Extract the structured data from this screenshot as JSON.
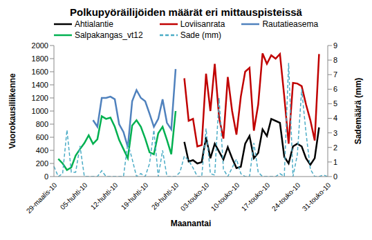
{
  "chart_data": {
    "type": "line",
    "title": "Polkupyöräilijöiden määrät eri mittauspisteissä",
    "x_label": "Maanantai",
    "y_label": "Vuorokausiliikenne",
    "y2_label": "Sademäärä (mm)",
    "categories": [
      "29-maalis-10",
      null,
      null,
      null,
      null,
      null,
      null,
      "05-huhti-10",
      null,
      null,
      null,
      null,
      null,
      null,
      "12-huhti-10",
      null,
      null,
      null,
      null,
      null,
      null,
      "19-huhti-10",
      null,
      null,
      null,
      null,
      null,
      null,
      "26-huhti-10",
      null,
      null,
      null,
      null,
      null,
      null,
      "03-touko-10",
      null,
      null,
      null,
      null,
      null,
      null,
      "10-touko-10",
      null,
      null,
      null,
      null,
      null,
      null,
      "17-touko-10",
      null,
      null,
      null,
      null,
      null,
      null,
      "24-touko-10",
      null,
      null,
      null,
      null,
      null,
      null,
      "31-touko-10"
    ],
    "ylim": [
      0,
      2000
    ],
    "yticks": [
      0,
      200,
      400,
      600,
      800,
      1000,
      1200,
      1400,
      1600,
      1800,
      2000
    ],
    "y2lim": [
      0,
      9
    ],
    "y2ticks": [
      0,
      1,
      2,
      3,
      4,
      5,
      6,
      7,
      8,
      9
    ],
    "grid": false,
    "legend": "top",
    "series": [
      {
        "name": "Ahtialantie",
        "color": "#000000",
        "line_style": "solid",
        "values": [
          null,
          null,
          null,
          null,
          null,
          null,
          null,
          null,
          null,
          null,
          null,
          null,
          null,
          null,
          null,
          null,
          null,
          null,
          null,
          null,
          null,
          null,
          null,
          null,
          null,
          null,
          null,
          null,
          null,
          null,
          530,
          230,
          250,
          200,
          220,
          600,
          280,
          500,
          380,
          260,
          450,
          280,
          130,
          150,
          500,
          620,
          280,
          360,
          720,
          620,
          880,
          850,
          820,
          300,
          200,
          460,
          500,
          460,
          280,
          180,
          280,
          750,
          null,
          null
        ]
      },
      {
        "name": "Loviisanrata",
        "color": "#c00000",
        "line_style": "solid",
        "values": [
          null,
          null,
          null,
          null,
          null,
          null,
          null,
          null,
          null,
          null,
          null,
          null,
          null,
          null,
          null,
          null,
          null,
          null,
          null,
          null,
          null,
          null,
          null,
          null,
          null,
          null,
          null,
          null,
          null,
          null,
          1500,
          850,
          880,
          460,
          480,
          1570,
          1000,
          1720,
          900,
          580,
          1520,
          1000,
          640,
          1220,
          1600,
          1660,
          700,
          1100,
          1880,
          1720,
          1850,
          1800,
          1870,
          1220,
          500,
          1430,
          1420,
          1380,
          1100,
          860,
          550,
          1870,
          null,
          null
        ]
      },
      {
        "name": "Rautatieasema",
        "color": "#4f81bd",
        "line_style": "solid",
        "values": [
          null,
          null,
          null,
          null,
          null,
          null,
          null,
          null,
          null,
          860,
          760,
          1200,
          1200,
          1220,
          1180,
          800,
          680,
          450,
          1150,
          1320,
          1200,
          1150,
          960,
          760,
          880,
          1180,
          820,
          720,
          1640,
          null,
          null,
          null,
          null,
          null,
          null,
          null,
          null,
          null,
          null,
          null,
          null,
          null,
          null,
          null,
          null,
          null,
          null,
          null,
          null,
          null,
          null,
          null,
          null,
          null,
          null,
          null,
          null,
          null,
          null,
          null,
          null,
          null,
          null,
          null
        ]
      },
      {
        "name": "Salpakangas_vt12",
        "color": "#00b050",
        "line_style": "solid",
        "values": [
          null,
          270,
          200,
          100,
          140,
          320,
          420,
          510,
          630,
          500,
          570,
          920,
          880,
          900,
          760,
          560,
          420,
          280,
          780,
          860,
          760,
          580,
          370,
          340,
          660,
          760,
          560,
          340,
          1000,
          null,
          null,
          null,
          null,
          null,
          null,
          null,
          null,
          null,
          null,
          null,
          null,
          null,
          null,
          null,
          null,
          null,
          null,
          null,
          null,
          null,
          null,
          null,
          null,
          null,
          null,
          null,
          null,
          null,
          null,
          null,
          null,
          null,
          null,
          null
        ]
      },
      {
        "name": "Sade (mm)",
        "color": "#4bacc6",
        "line_style": "dashed",
        "axis": "y2",
        "values": [
          0.7,
          0,
          0.2,
          3.2,
          0.3,
          0.3,
          2.1,
          0,
          0,
          0,
          0,
          0.4,
          0,
          0,
          0,
          0,
          0,
          2.3,
          1.2,
          0,
          0.2,
          0,
          0.9,
          3.2,
          0,
          1.8,
          0,
          0,
          0,
          0.3,
          1.4,
          1.1,
          0.6,
          0,
          0,
          3.3,
          0.2,
          0.1,
          5.4,
          0.5,
          0,
          0.6,
          1.2,
          0.2,
          0,
          0,
          2.3,
          0.3,
          0,
          0,
          0,
          0,
          0.2,
          0,
          7.8,
          0,
          1.5,
          6.0,
          3.0,
          0.5,
          0,
          0,
          0.1,
          0
        ]
      }
    ]
  }
}
